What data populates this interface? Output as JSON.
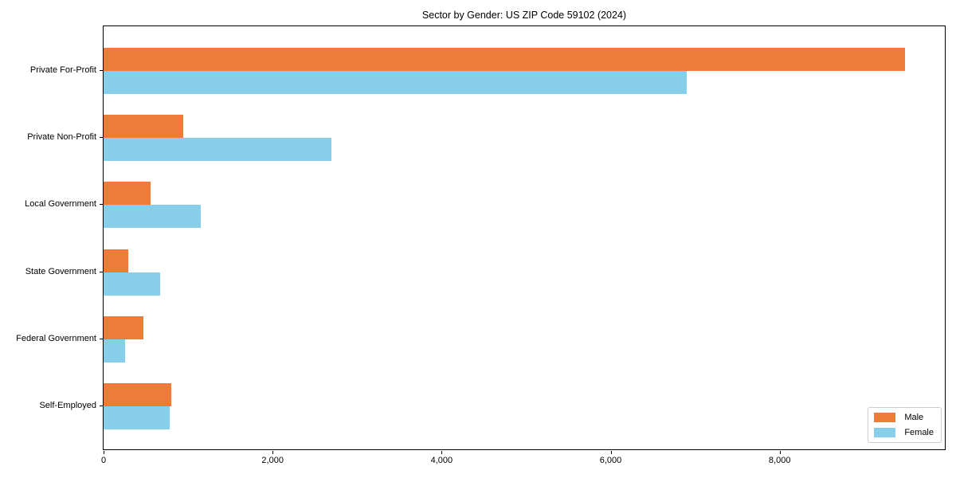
{
  "title": "Sector by Gender: US ZIP Code 59102 (2024)",
  "colors": {
    "male": "#ed7b39",
    "female": "#87ceeb",
    "spine": "#000000",
    "legend_border": "#cccccc"
  },
  "legend": {
    "entries": [
      "Male",
      "Female"
    ],
    "position": "lower right"
  },
  "chart_data": {
    "type": "bar",
    "orientation": "horizontal",
    "title": "Sector by Gender: US ZIP Code 59102 (2024)",
    "categories": [
      "Private For-Profit",
      "Private Non-Profit",
      "Local Government",
      "State Government",
      "Federal Government",
      "Self-Employed"
    ],
    "series": [
      {
        "name": "Male",
        "color": "#ed7b39",
        "values": [
          9480,
          940,
          555,
          290,
          475,
          800
        ]
      },
      {
        "name": "Female",
        "color": "#87ceeb",
        "values": [
          6900,
          2700,
          1150,
          665,
          250,
          780
        ]
      }
    ],
    "xlabel": "",
    "ylabel": "",
    "xlim": [
      0,
      9954
    ],
    "x_ticks": [
      {
        "value": 0,
        "label": "0"
      },
      {
        "value": 2000,
        "label": "2,000"
      },
      {
        "value": 4000,
        "label": "4,000"
      },
      {
        "value": 6000,
        "label": "6,000"
      },
      {
        "value": 8000,
        "label": "8,000"
      }
    ],
    "grid": false,
    "legend_position": "lower right"
  }
}
